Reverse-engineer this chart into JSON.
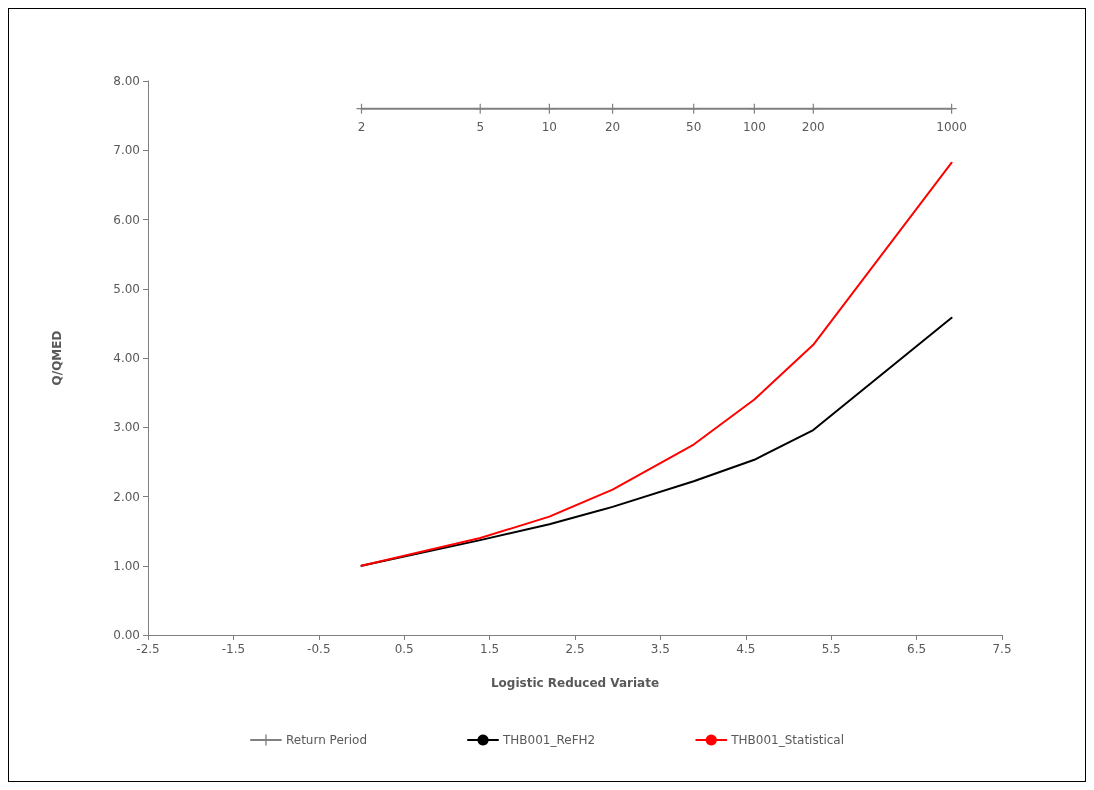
{
  "chart_data": {
    "type": "line",
    "xlabel": "Logistic Reduced Variate",
    "ylabel": "Q/QMED",
    "xlim": [
      -2.5,
      7.5
    ],
    "xticks": [
      -2.5,
      -1.5,
      -0.5,
      0.5,
      1.5,
      2.5,
      3.5,
      4.5,
      5.5,
      6.5,
      7.5
    ],
    "ylim": [
      0,
      8
    ],
    "yticks": [
      {
        "value": 0,
        "label": "0.00"
      },
      {
        "value": 1,
        "label": "1.00"
      },
      {
        "value": 2,
        "label": "2.00"
      },
      {
        "value": 3,
        "label": "3.00"
      },
      {
        "value": 4,
        "label": "4.00"
      },
      {
        "value": 5,
        "label": "5.00"
      },
      {
        "value": 6,
        "label": "6.00"
      },
      {
        "value": 7,
        "label": "7.00"
      },
      {
        "value": 8,
        "label": "8.00"
      }
    ],
    "annotations": [
      {
        "text": "2",
        "x": 0,
        "y": 7.6
      },
      {
        "text": "5",
        "x": 1.39,
        "y": 7.6
      },
      {
        "text": "10",
        "x": 2.2,
        "y": 7.6
      },
      {
        "text": "20",
        "x": 2.94,
        "y": 7.6
      },
      {
        "text": "50",
        "x": 3.89,
        "y": 7.6
      },
      {
        "text": "100",
        "x": 4.6,
        "y": 7.6
      },
      {
        "text": "200",
        "x": 5.29,
        "y": 7.6
      },
      {
        "text": "1000",
        "x": 6.91,
        "y": 7.6
      }
    ],
    "grid": false,
    "legend": "bottom",
    "line_style": "solid",
    "series": [
      {
        "name": "Return Period",
        "color": "#808080",
        "marker": "cross",
        "x": [
          0,
          1.39,
          2.2,
          2.94,
          3.89,
          4.6,
          5.29,
          6.91
        ],
        "values": [
          7.6,
          7.6,
          7.6,
          7.6,
          7.6,
          7.6,
          7.6,
          7.6
        ]
      },
      {
        "name": "THB001_ReFH2",
        "color": "#000000",
        "marker": "none",
        "x": [
          0,
          1.39,
          2.2,
          2.94,
          3.89,
          4.6,
          5.29,
          6.91
        ],
        "values": [
          1.0,
          1.37,
          1.6,
          1.85,
          2.22,
          2.53,
          2.96,
          4.58
        ]
      },
      {
        "name": "THB001_Statistical",
        "color": "#ff0000",
        "marker": "none",
        "x": [
          0,
          1.39,
          2.2,
          2.94,
          3.89,
          4.6,
          5.29,
          6.91
        ],
        "values": [
          1.0,
          1.4,
          1.71,
          2.1,
          2.75,
          3.4,
          4.19,
          6.82
        ]
      }
    ]
  }
}
